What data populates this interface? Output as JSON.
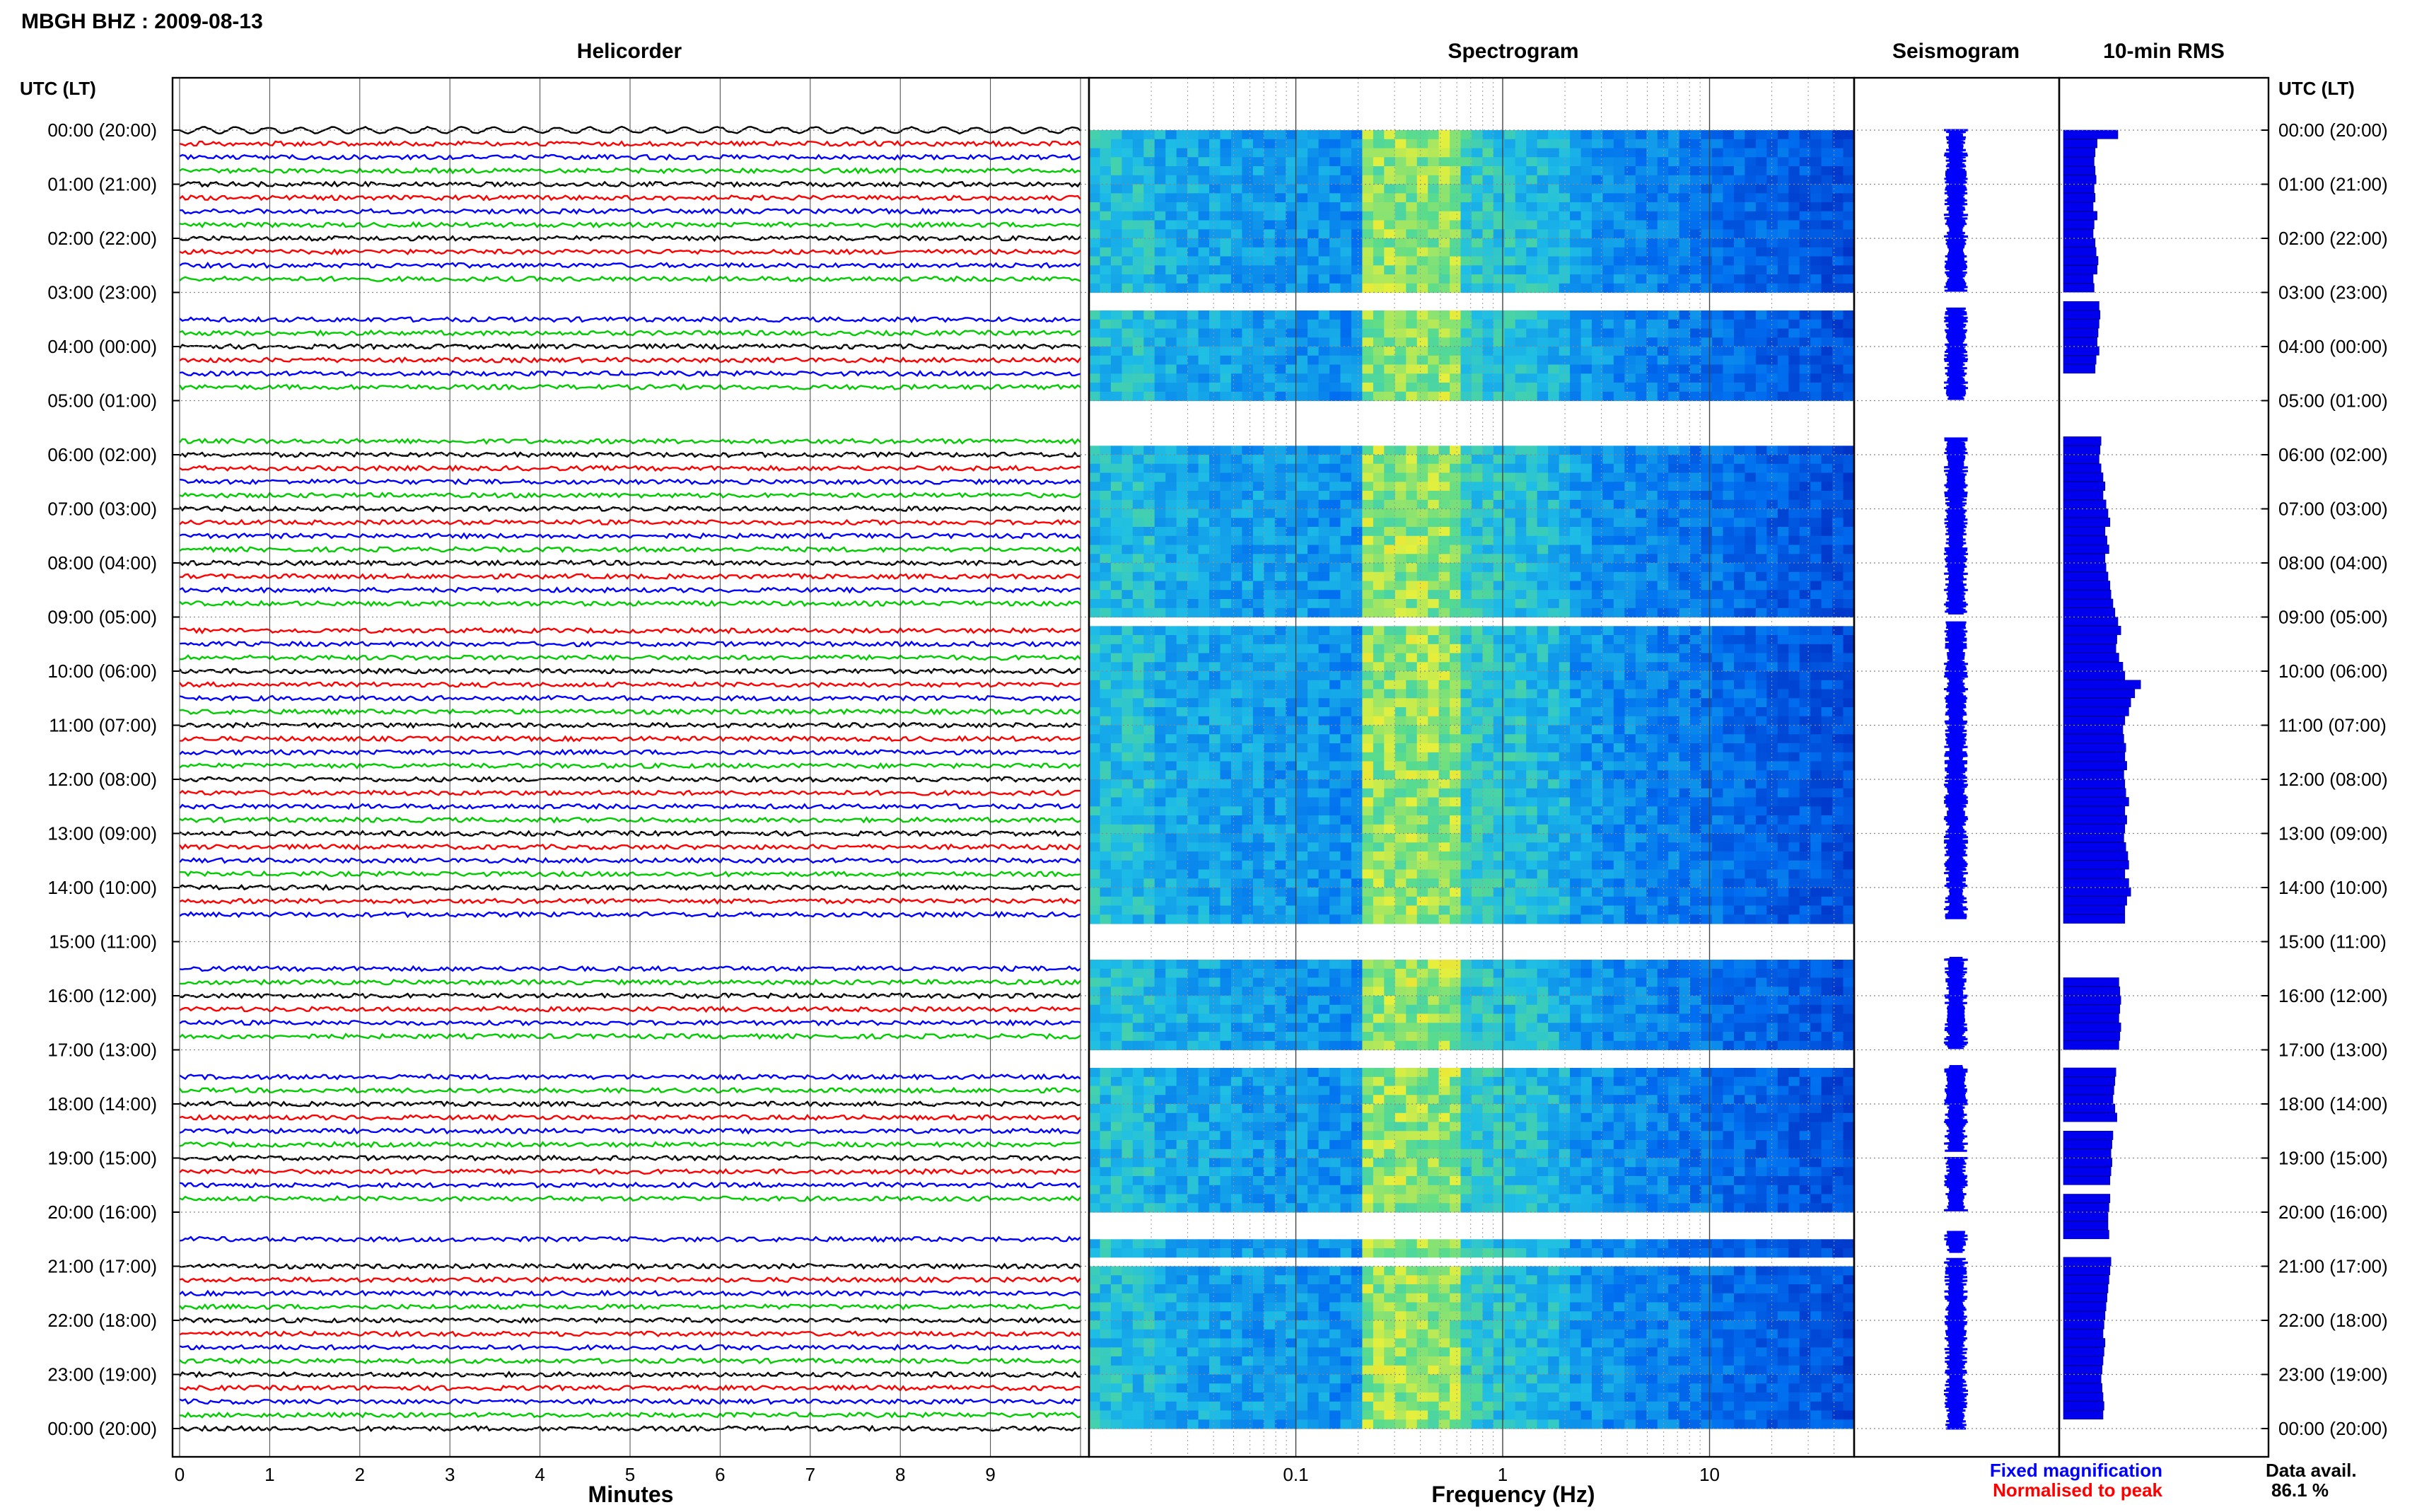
{
  "header": {
    "station_title": "MBGH BHZ : 2009-08-13",
    "left_axis_label": "UTC (LT)",
    "right_axis_label": "UTC (LT)"
  },
  "panels": {
    "helicorder": {
      "title": "Helicorder",
      "xlabel": "Minutes"
    },
    "spectrogram": {
      "title": "Spectrogram",
      "xlabel": "Frequency (Hz)"
    },
    "seismogram": {
      "title": "Seismogram"
    },
    "rms": {
      "title": "10-min RMS"
    }
  },
  "legend": {
    "fixed_magnification": "Fixed magnification",
    "fixed_color": "#0000ff",
    "normalised": "Normalised to peak",
    "normalised_color": "#ff0000"
  },
  "availability": {
    "label": "Data avail.",
    "value": "86.1 %"
  },
  "colors": {
    "trace_cycle": [
      "#000000",
      "#ff0000",
      "#0000ff",
      "#00cc00"
    ],
    "spectrogram_low": "#0022bb",
    "spectrogram_high": "#ffff00",
    "rms_bar": "#0000ee"
  },
  "chart_data": {
    "type": "heatmap",
    "time_labels": [
      "00:00 (20:00)",
      "01:00 (21:00)",
      "02:00 (22:00)",
      "03:00 (23:00)",
      "04:00 (00:00)",
      "05:00 (01:00)",
      "06:00 (02:00)",
      "07:00 (03:00)",
      "08:00 (04:00)",
      "09:00 (05:00)",
      "10:00 (06:00)",
      "11:00 (07:00)",
      "12:00 (08:00)",
      "13:00 (09:00)",
      "14:00 (10:00)",
      "15:00 (11:00)",
      "16:00 (12:00)",
      "17:00 (13:00)",
      "18:00 (14:00)",
      "19:00 (15:00)",
      "20:00 (16:00)",
      "21:00 (17:00)",
      "22:00 (18:00)",
      "23:00 (19:00)",
      "00:00 (20:00)"
    ],
    "helicorder_x_ticks": [
      "0",
      "1",
      "2",
      "3",
      "4",
      "5",
      "6",
      "7",
      "8",
      "9"
    ],
    "helicorder_xlim": [
      0,
      10
    ],
    "frequency_ticks": [
      "0.1",
      "1",
      "10"
    ],
    "frequency_xlim": [
      0.01,
      50
    ],
    "frequency_scale": "log",
    "data_gaps_hours": [
      [
        3.0,
        3.3
      ],
      [
        5.0,
        5.7
      ],
      [
        8.95,
        9.1
      ],
      [
        14.6,
        15.3
      ],
      [
        17.0,
        17.3
      ],
      [
        18.9,
        19.0
      ],
      [
        20.0,
        20.35
      ],
      [
        20.75,
        20.85
      ]
    ],
    "rms_10min": [
      0.55,
      0.34,
      0.32,
      0.31,
      0.32,
      0.33,
      0.31,
      0.32,
      0.3,
      0.34,
      0.31,
      0.3,
      0.32,
      0.33,
      0.35,
      0.34,
      0.3,
      0.31,
      0.0,
      0.36,
      0.37,
      0.36,
      0.35,
      0.34,
      0.36,
      0.33,
      0.32,
      0.0,
      0.0,
      0.0,
      0.0,
      0.0,
      0.0,
      0.0,
      0.38,
      0.37,
      0.36,
      0.38,
      0.4,
      0.42,
      0.4,
      0.43,
      0.45,
      0.47,
      0.42,
      0.44,
      0.46,
      0.42,
      0.43,
      0.45,
      0.47,
      0.48,
      0.5,
      0.52,
      0.55,
      0.58,
      0.54,
      0.53,
      0.56,
      0.6,
      0.62,
      0.78,
      0.72,
      0.68,
      0.66,
      0.62,
      0.6,
      0.61,
      0.63,
      0.62,
      0.64,
      0.61,
      0.62,
      0.63,
      0.66,
      0.62,
      0.64,
      0.62,
      0.61,
      0.63,
      0.65,
      0.66,
      0.62,
      0.66,
      0.68,
      0.64,
      0.62,
      0.62,
      0.0,
      0.0,
      0.0,
      0.0,
      0.0,
      0.0,
      0.56,
      0.57,
      0.58,
      0.57,
      0.56,
      0.58,
      0.57,
      0.56,
      0.0,
      0.0,
      0.53,
      0.52,
      0.51,
      0.5,
      0.52,
      0.54,
      0.0,
      0.5,
      0.49,
      0.48,
      0.49,
      0.48,
      0.47,
      0.0,
      0.47,
      0.46,
      0.45,
      0.45,
      0.46,
      0.0,
      0.0,
      0.48,
      0.47,
      0.46,
      0.45,
      0.44,
      0.43,
      0.42,
      0.41,
      0.4,
      0.42,
      0.41,
      0.4,
      0.39,
      0.38,
      0.39,
      0.4,
      0.41,
      0.4
    ],
    "rms_scale_max": 1.0
  }
}
